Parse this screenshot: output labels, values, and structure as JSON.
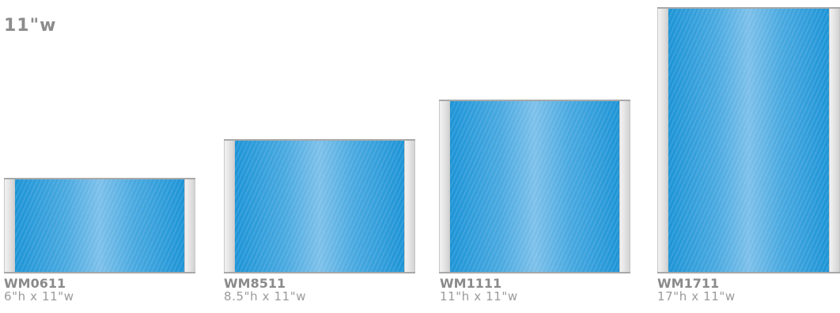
{
  "title": "11\"w",
  "colors": {
    "panel": "#49a9e0",
    "rail": "#e4e4e4",
    "text": "#8a8a8a"
  },
  "products": [
    {
      "model": "WM0611",
      "size": "6\"h x 11\"w"
    },
    {
      "model": "WM8511",
      "size": "8.5\"h x 11\"w"
    },
    {
      "model": "WM1111",
      "size": "11\"h x 11\"w"
    },
    {
      "model": "WM1711",
      "size": "17\"h x 11\"w"
    }
  ]
}
